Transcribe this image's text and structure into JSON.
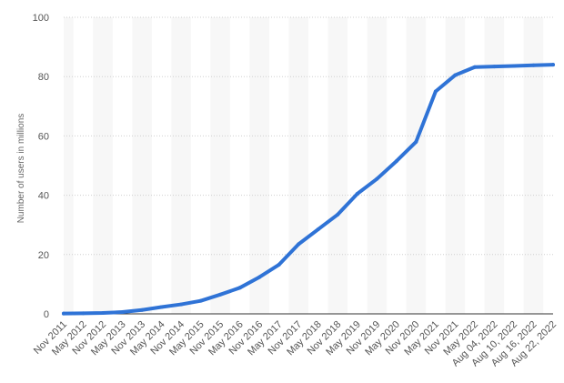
{
  "chart_data": {
    "type": "line",
    "title": "",
    "xlabel": "",
    "ylabel": "Number of users in millions",
    "ylim": [
      0,
      100
    ],
    "yticks": [
      0,
      20,
      40,
      60,
      80,
      100
    ],
    "grid": "horizontal dotted lines, alternating vertical column bands",
    "legend": "none",
    "line_color": "#2f73d6",
    "categories": [
      "Nov 2011",
      "May 2012",
      "Nov 2012",
      "May 2013",
      "Nov 2013",
      "May 2014",
      "Nov 2014",
      "May 2015",
      "Nov 2015",
      "May 2016",
      "Nov 2016",
      "May 2017",
      "Nov 2017",
      "May 2018",
      "Nov 2018",
      "May 2019",
      "Nov 2019",
      "May 2020",
      "Nov 2020",
      "May 2021",
      "Nov 2021",
      "May 2022",
      "Aug 04, 2022",
      "Aug 10, 2022",
      "Aug 16, 2022",
      "Aug 22, 2022"
    ],
    "series": [
      {
        "values": [
          0.1,
          0.2,
          0.3,
          0.6,
          1.3,
          2.3,
          3.2,
          4.4,
          6.5,
          8.8,
          12.4,
          16.6,
          23.5,
          28.5,
          33.5,
          40.5,
          45.5,
          51.5,
          58.0,
          75.0,
          80.5,
          83.2,
          83.4,
          83.6,
          83.8,
          84.0
        ]
      }
    ]
  }
}
